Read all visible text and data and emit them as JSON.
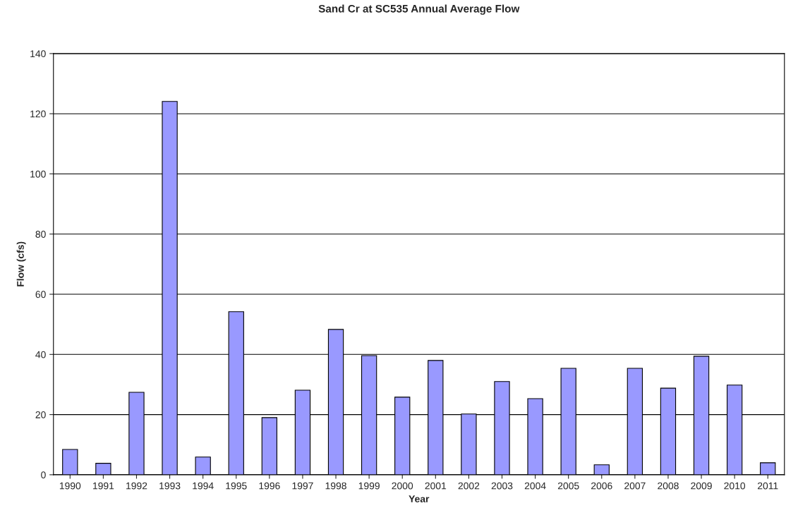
{
  "chart_data": {
    "type": "bar",
    "title": "Sand Cr at SC535 Annual Average Flow",
    "xlabel": "Year",
    "ylabel": "Flow (cfs)",
    "categories": [
      "1990",
      "1991",
      "1992",
      "1993",
      "1994",
      "1995",
      "1996",
      "1997",
      "1998",
      "1999",
      "2000",
      "2001",
      "2002",
      "2003",
      "2004",
      "2005",
      "2006",
      "2007",
      "2008",
      "2009",
      "2010",
      "2011"
    ],
    "values": [
      8.4,
      3.8,
      27.4,
      124.1,
      5.9,
      54.2,
      19.0,
      28.1,
      48.3,
      39.6,
      25.8,
      38.0,
      20.2,
      31.0,
      25.3,
      35.4,
      3.3,
      35.4,
      28.8,
      39.4,
      29.8,
      4.0
    ],
    "color": "#9999ff",
    "ylim": [
      0,
      140
    ],
    "yticks": [
      0,
      20,
      40,
      60,
      80,
      100,
      120,
      140
    ],
    "grid": "y",
    "legend": false
  }
}
